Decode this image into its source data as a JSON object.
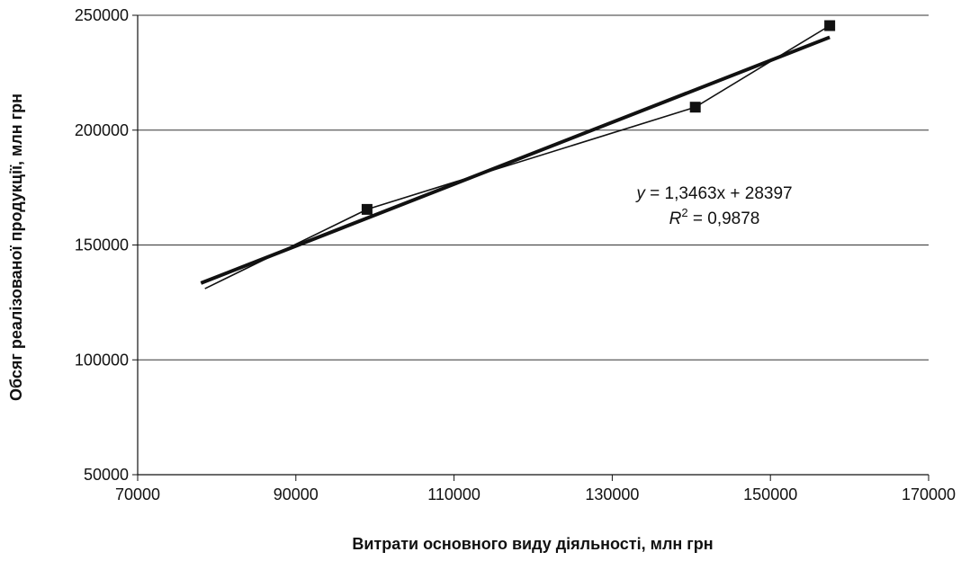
{
  "chart_data": {
    "type": "scatter",
    "xlabel": "Витрати основного виду діяльності, млн грн",
    "ylabel": "Обсяг реалізованої продукції, млн грн",
    "xlim": [
      70000,
      170000
    ],
    "ylim": [
      50000,
      250000
    ],
    "x_ticks": [
      70000,
      90000,
      110000,
      130000,
      150000,
      170000
    ],
    "y_ticks": [
      50000,
      100000,
      150000,
      200000,
      250000
    ],
    "x_tick_labels": [
      "70000",
      "90000",
      "110000",
      "130000",
      "150000",
      "170000"
    ],
    "y_tick_labels": [
      "50000",
      "100000",
      "150000",
      "200000",
      "250000"
    ],
    "grid": "horizontal",
    "series": [
      {
        "points": [
          {
            "x": 78500,
            "y": 131000,
            "marker": false
          },
          {
            "x": 99000,
            "y": 165500,
            "marker": true
          },
          {
            "x": 140500,
            "y": 210000,
            "marker": true
          },
          {
            "x": 157500,
            "y": 245500,
            "marker": true
          }
        ]
      }
    ],
    "trendline": {
      "slope": 1.3463,
      "intercept": 28397,
      "x_range": [
        78000,
        157500
      ],
      "equation_prefix": "y",
      "equation_rhs": " = 1,3463x + 28397",
      "r2_prefix": "R",
      "r2_sup": "2",
      "r2_rhs": " = 0,9878"
    }
  }
}
